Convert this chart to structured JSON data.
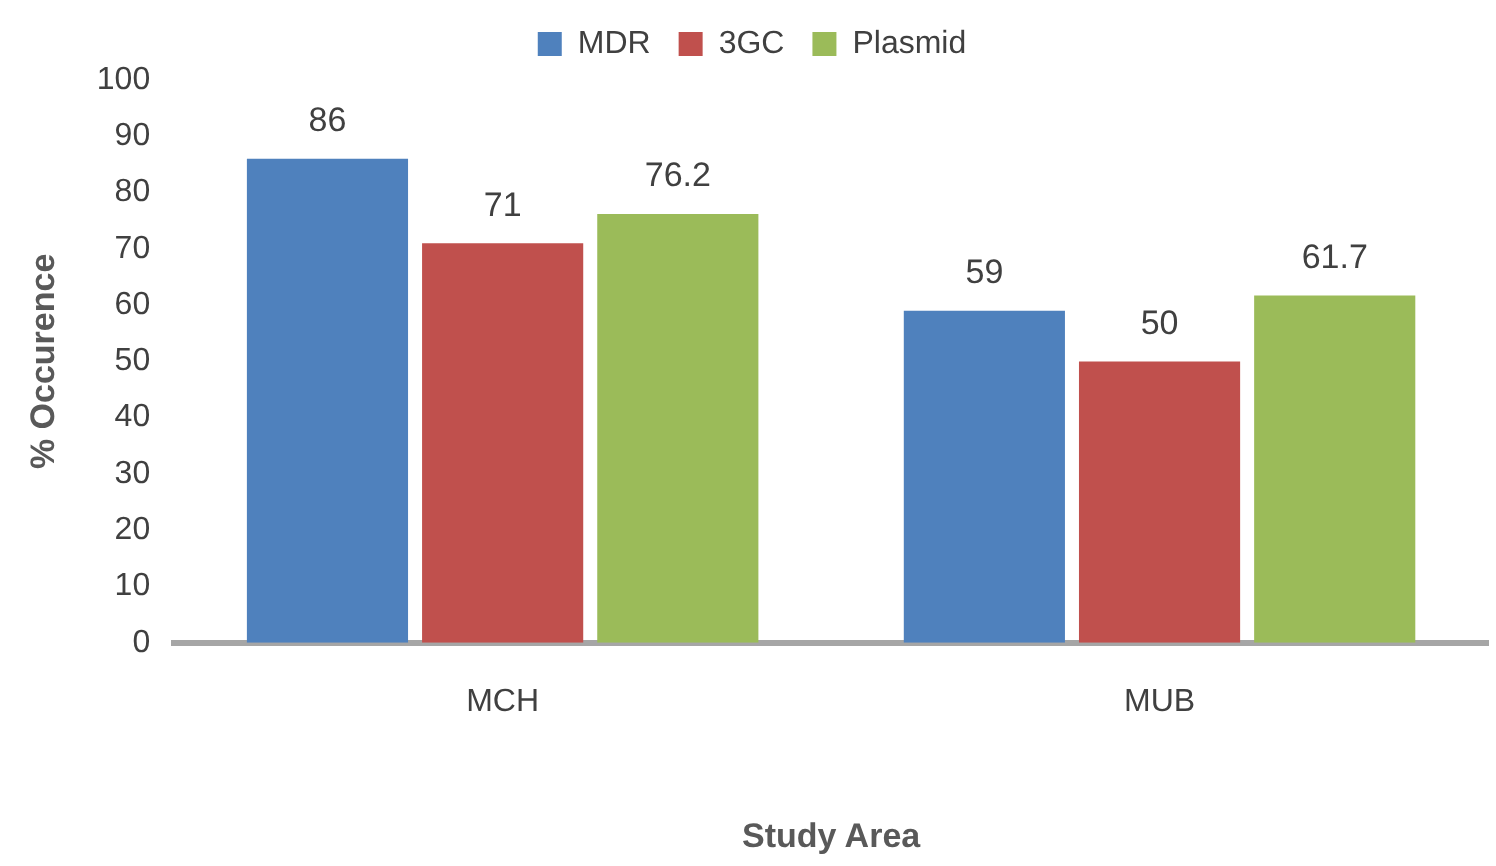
{
  "chart_data": {
    "type": "bar",
    "xlabel": "Study Area",
    "ylabel": "% Occurence",
    "categories": [
      "MCH",
      "MUB"
    ],
    "series": [
      {
        "name": "MDR",
        "color": "#4f81bd",
        "values": [
          86,
          59
        ]
      },
      {
        "name": "3GC",
        "color": "#c0504d",
        "values": [
          71,
          50
        ]
      },
      {
        "name": "Plasmid",
        "color": "#9bbb59",
        "values": [
          76.2,
          61.7
        ]
      }
    ],
    "ylim": [
      0,
      100
    ],
    "yticks": [
      0,
      10,
      20,
      30,
      40,
      50,
      60,
      70,
      80,
      90,
      100
    ],
    "grid": false,
    "legend": "top",
    "data_labels": true
  }
}
